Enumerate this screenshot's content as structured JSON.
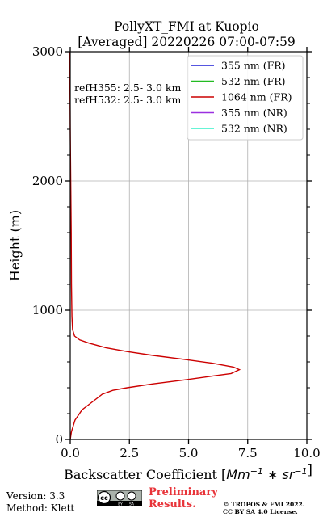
{
  "chart_data": {
    "type": "line",
    "title_line1": "PollyXT_FMI at Kuopio",
    "title_line2": "[Averaged] 20220226 07:00-07:59",
    "xlabel": "Backscatter Coefficient [",
    "xlabel_math": "Mm^{-1}*sr^{-1}",
    "xlabel_end": "]",
    "ylabel": "Height (m)",
    "xlim": [
      0,
      10
    ],
    "ylim": [
      0,
      3000
    ],
    "x_ticks": [
      0,
      2.5,
      5,
      7.5,
      10
    ],
    "x_tick_labels": [
      "0.0",
      "2.5",
      "5.0",
      "7.5",
      "10.0"
    ],
    "y_ticks": [
      0,
      1000,
      2000,
      3000
    ],
    "y_tick_labels": [
      "0",
      "1000",
      "2000",
      "3000"
    ],
    "grid": true,
    "legend_position": "top-right",
    "annotations": [
      "refH355:  2.5- 3.0 km",
      "refH532:  2.5- 3.0 km"
    ],
    "series": [
      {
        "name": "355 nm (FR)",
        "color": "#1f1fd6",
        "points": []
      },
      {
        "name": "532 nm (FR)",
        "color": "#22bb22",
        "points": []
      },
      {
        "name": "1064 nm (FR)",
        "color": "#cc0000",
        "points": [
          [
            0.0,
            0
          ],
          [
            0.05,
            60
          ],
          [
            0.2,
            150
          ],
          [
            0.5,
            230
          ],
          [
            1.0,
            300
          ],
          [
            1.35,
            350
          ],
          [
            1.8,
            380
          ],
          [
            2.4,
            400
          ],
          [
            3.5,
            430
          ],
          [
            4.8,
            460
          ],
          [
            6.0,
            490
          ],
          [
            6.8,
            510
          ],
          [
            7.15,
            540
          ],
          [
            6.9,
            560
          ],
          [
            6.0,
            590
          ],
          [
            4.8,
            620
          ],
          [
            3.5,
            650
          ],
          [
            2.4,
            680
          ],
          [
            1.5,
            710
          ],
          [
            0.8,
            745
          ],
          [
            0.4,
            770
          ],
          [
            0.18,
            800
          ],
          [
            0.1,
            850
          ],
          [
            0.07,
            950
          ],
          [
            0.05,
            1200
          ],
          [
            0.04,
            1600
          ],
          [
            0.02,
            2000
          ],
          [
            0.0,
            2400
          ],
          [
            -0.02,
            3000
          ]
        ]
      },
      {
        "name": "355 nm (NR)",
        "color": "#9b30e0",
        "points": []
      },
      {
        "name": "532 nm (NR)",
        "color": "#33f0c8",
        "points": []
      }
    ]
  },
  "footer": {
    "version": "Version: 3.3",
    "method": "Method: Klett",
    "cc_text": "cc",
    "cc_by": "BY",
    "cc_sa": "SA",
    "preliminary_line1": "Preliminary",
    "preliminary_line2": "Results.",
    "copyright_line1": "© TROPOS & FMI 2022.",
    "copyright_line2": "CC BY SA 4.0 License."
  }
}
